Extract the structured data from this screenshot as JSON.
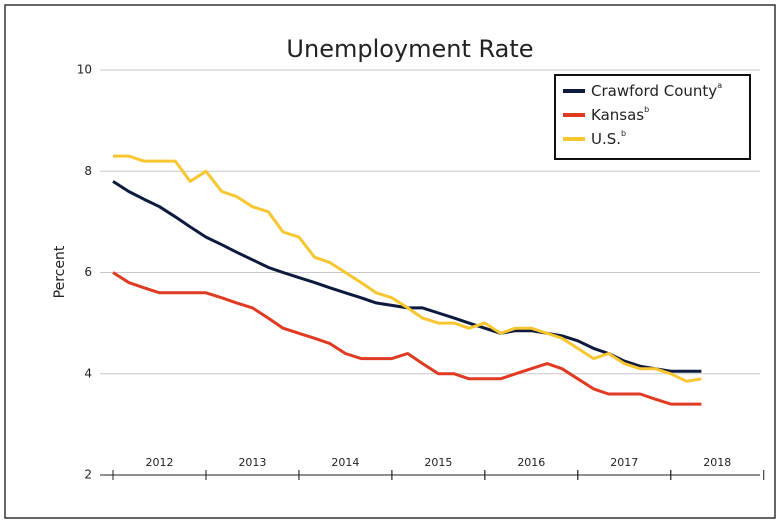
{
  "chart_data": {
    "type": "line",
    "title": "Unemployment Rate",
    "y_label": "Percent",
    "x": [
      2012.0,
      2012.17,
      2012.33,
      2012.5,
      2012.67,
      2012.83,
      2013.0,
      2013.17,
      2013.33,
      2013.5,
      2013.67,
      2013.83,
      2014.0,
      2014.17,
      2014.33,
      2014.5,
      2014.67,
      2014.83,
      2015.0,
      2015.17,
      2015.33,
      2015.5,
      2015.67,
      2015.83,
      2016.0,
      2016.17,
      2016.33,
      2016.5,
      2016.67,
      2016.83,
      2017.0,
      2017.17,
      2017.33,
      2017.5,
      2017.67,
      2017.83,
      2018.0,
      2018.17,
      2018.33
    ],
    "series": [
      {
        "name": "Crawford County",
        "superscript": "a",
        "color": "#0d1a3d",
        "values": [
          7.8,
          7.6,
          7.45,
          7.3,
          7.1,
          6.9,
          6.7,
          6.55,
          6.4,
          6.25,
          6.1,
          6.0,
          5.9,
          5.8,
          5.7,
          5.6,
          5.5,
          5.4,
          5.35,
          5.3,
          5.3,
          5.2,
          5.1,
          5.0,
          4.9,
          4.8,
          4.85,
          4.85,
          4.8,
          4.75,
          4.65,
          4.5,
          4.4,
          4.25,
          4.15,
          4.1,
          4.05,
          4.05,
          4.05
        ]
      },
      {
        "name": "Kansas",
        "superscript": "b",
        "color": "#e03a22",
        "values": [
          6.0,
          5.8,
          5.7,
          5.6,
          5.6,
          5.6,
          5.6,
          5.5,
          5.4,
          5.3,
          5.1,
          4.9,
          4.8,
          4.7,
          4.6,
          4.4,
          4.3,
          4.3,
          4.3,
          4.4,
          4.2,
          4.0,
          4.0,
          3.9,
          3.9,
          3.9,
          4.0,
          4.1,
          4.2,
          4.1,
          3.9,
          3.7,
          3.6,
          3.6,
          3.6,
          3.5,
          3.4,
          3.4,
          3.4
        ]
      },
      {
        "name": "U.S.",
        "superscript": "b",
        "color": "#f7c630",
        "values": [
          8.3,
          8.3,
          8.2,
          8.2,
          8.2,
          7.8,
          8.0,
          7.6,
          7.5,
          7.3,
          7.2,
          6.8,
          6.7,
          6.3,
          6.2,
          6.0,
          5.8,
          5.6,
          5.5,
          5.3,
          5.1,
          5.0,
          5.0,
          4.9,
          5.0,
          4.8,
          4.9,
          4.9,
          4.8,
          4.7,
          4.5,
          4.3,
          4.4,
          4.2,
          4.1,
          4.1,
          4.0,
          3.85,
          3.9
        ]
      }
    ],
    "xlim": [
      2011.86,
      2018.96
    ],
    "xticks": [
      {
        "value": 2012.5,
        "label": "2012"
      },
      {
        "value": 2013.5,
        "label": "2013"
      },
      {
        "value": 2014.5,
        "label": "2014"
      },
      {
        "value": 2015.5,
        "label": "2015"
      },
      {
        "value": 2016.5,
        "label": "2016"
      },
      {
        "value": 2017.5,
        "label": "2017"
      },
      {
        "value": 2018.5,
        "label": "2018"
      }
    ],
    "ylim": [
      2,
      10
    ],
    "yticks": [
      2,
      4,
      6,
      8,
      10
    ],
    "grid": true,
    "legend": "upper right"
  }
}
